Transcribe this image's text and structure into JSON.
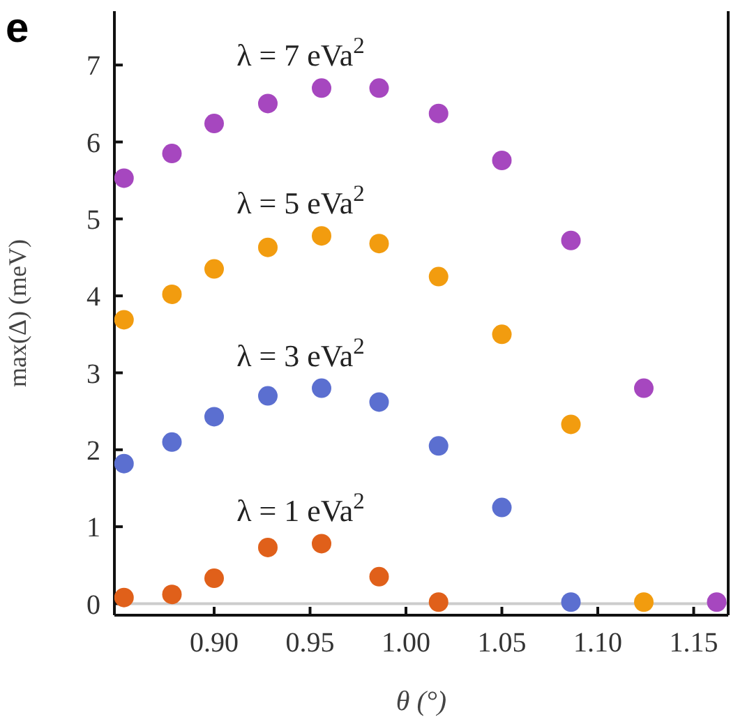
{
  "chart_data": {
    "type": "scatter",
    "xlabel": "θ (°)",
    "ylabel": "max(Δ) (meV)",
    "annotations": [
      "e"
    ],
    "x": [
      0.853,
      0.878,
      0.9,
      0.928,
      0.956,
      0.986,
      1.017,
      1.05,
      1.086,
      1.124,
      1.162
    ],
    "series": [
      {
        "name": "λ = 7 eVa$^{2}$",
        "color": "#a647bf",
        "values": [
          5.53,
          5.85,
          6.24,
          6.5,
          6.7,
          6.7,
          6.37,
          5.76,
          4.72,
          2.8,
          0.02
        ]
      },
      {
        "name": "λ = 5 eVa$^{2}$",
        "color": "#f29c0f",
        "values": [
          3.69,
          4.02,
          4.35,
          4.63,
          4.78,
          4.68,
          4.25,
          3.5,
          2.33,
          0.02,
          null
        ]
      },
      {
        "name": "λ = 3 eVa$^{2}$",
        "color": "#5b6fd0",
        "values": [
          1.82,
          2.1,
          2.43,
          2.7,
          2.8,
          2.62,
          2.05,
          1.25,
          0.02,
          null,
          null
        ]
      },
      {
        "name": "λ = 1 eVa$^{2}$",
        "color": "#e0601a",
        "values": [
          0.08,
          0.12,
          0.33,
          0.73,
          0.78,
          0.35,
          0.02,
          null,
          null,
          null,
          null
        ]
      }
    ],
    "xlim": [
      0.848,
      1.168
    ],
    "xticks": [
      {
        "value": 0.9,
        "label": "0.90"
      },
      {
        "value": 0.95,
        "label": "0.95"
      },
      {
        "value": 1.0,
        "label": "1.00"
      },
      {
        "value": 1.05,
        "label": "1.05"
      },
      {
        "value": 1.1,
        "label": "1.10"
      },
      {
        "value": 1.15,
        "label": "1.15"
      }
    ],
    "ylim": [
      -0.15,
      7.7
    ],
    "yticks": [
      0,
      1,
      2,
      3,
      4,
      5,
      6,
      7
    ],
    "ref_lines": [
      {
        "axis": "y",
        "value": 0,
        "color": "#cccccc"
      }
    ],
    "marker": "circle",
    "grid": false,
    "legend": false
  }
}
